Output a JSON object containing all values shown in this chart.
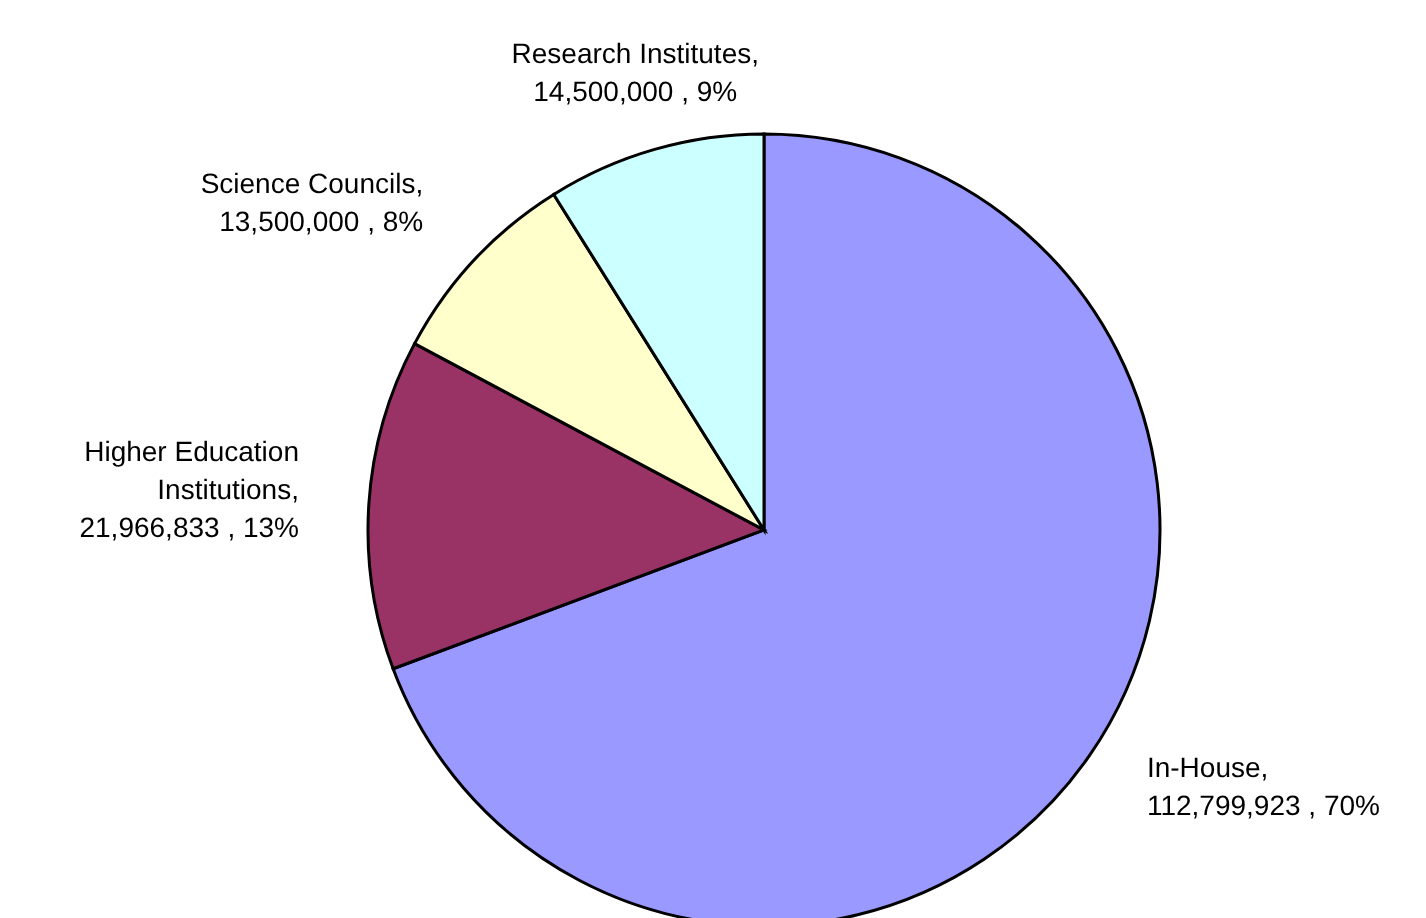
{
  "chart_data": {
    "type": "pie",
    "categories": [
      "In-House",
      "Higher Education Institutions",
      "Science Councils",
      "Research Institutes"
    ],
    "values": [
      112799923,
      21966833,
      13500000,
      14500000
    ],
    "colors": [
      "#9999ff",
      "#993366",
      "#ffffcc",
      "#ccffff"
    ],
    "value_labels": [
      ",\n112,799,923 , 70%",
      ",\n21,966,833 , 13%",
      ",\n13,500,000 , 8%",
      ",\n14,500,000 , 9%"
    ],
    "legend": false
  }
}
